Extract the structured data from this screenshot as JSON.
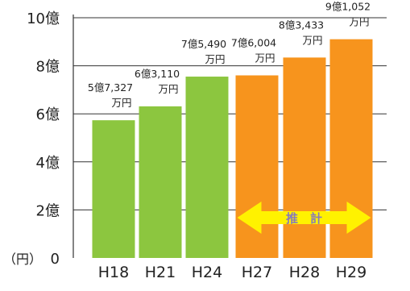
{
  "chart_data": {
    "type": "bar",
    "categories": [
      "H18",
      "H21",
      "H24",
      "H27",
      "H28",
      "H29"
    ],
    "values": [
      5.7327,
      6.311,
      7.549,
      7.6004,
      8.3433,
      9.1052
    ],
    "value_unit": "億円",
    "data_labels": [
      [
        "5億7,327",
        "万円"
      ],
      [
        "6億3,110",
        "万円"
      ],
      [
        "7億5,490",
        "万円"
      ],
      [
        "7億6,004",
        "万円"
      ],
      [
        "8億3,433",
        "万円"
      ],
      [
        "9億1,052",
        "万円"
      ]
    ],
    "estimated": [
      false,
      false,
      false,
      true,
      true,
      true
    ],
    "yticks": [
      0,
      2,
      4,
      6,
      8,
      10
    ],
    "ytick_labels": [
      "0",
      "2億",
      "4億",
      "6億",
      "8億",
      "10億"
    ],
    "ylim": [
      0,
      10
    ],
    "unit_label": "（円）",
    "annotation": "推　計",
    "grid": true,
    "colors": {
      "actual": "#8cc63f",
      "estimate": "#f7941d",
      "arrow": "#fff200"
    }
  }
}
